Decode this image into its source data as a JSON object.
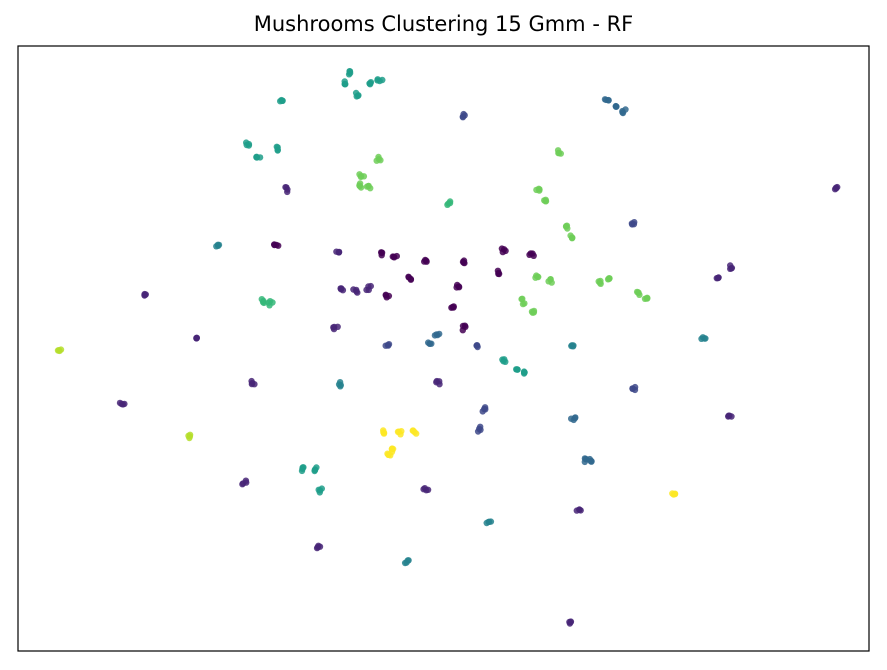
{
  "chart_data": {
    "type": "scatter",
    "title": "Mushrooms Clustering 15 Gmm - RF",
    "xlabel": "",
    "ylabel": "",
    "xlim": [
      0,
      100
    ],
    "ylim": [
      0,
      100
    ],
    "ticks": "none",
    "grid": false,
    "legend": "none",
    "colormap": "viridis",
    "clusters": [
      {
        "label": 0,
        "color": "#440154",
        "centers": [
          [
            30.3,
            67.2
          ],
          [
            42.8,
            65.8
          ],
          [
            44.2,
            65.1
          ],
          [
            47.9,
            64.5
          ],
          [
            46.0,
            61.8
          ],
          [
            43.3,
            58.9
          ],
          [
            52.4,
            64.2
          ],
          [
            51.7,
            60.2
          ],
          [
            51.2,
            56.9
          ],
          [
            52.3,
            53.4
          ],
          [
            56.5,
            62.5
          ],
          [
            57.0,
            66.4
          ],
          [
            60.4,
            65.6
          ]
        ]
      },
      {
        "label": 1,
        "color": "#482677",
        "centers": [
          [
            31.6,
            76.3
          ],
          [
            37.7,
            65.9
          ],
          [
            14.9,
            59.0
          ],
          [
            21.0,
            51.7
          ],
          [
            37.3,
            53.6
          ],
          [
            27.5,
            44.3
          ],
          [
            12.3,
            40.9
          ],
          [
            49.3,
            44.4
          ],
          [
            26.7,
            27.7
          ],
          [
            48.0,
            26.6
          ],
          [
            35.3,
            17.0
          ],
          [
            66.0,
            23.3
          ],
          [
            64.8,
            4.8
          ],
          [
            83.8,
            63.6
          ],
          [
            96.1,
            76.5
          ],
          [
            83.6,
            38.9
          ],
          [
            82.3,
            61.7
          ],
          [
            38.0,
            59.9
          ],
          [
            41.2,
            60.0
          ],
          [
            39.7,
            59.5
          ]
        ]
      },
      {
        "label": 2,
        "color": "#3e4989",
        "centers": [
          [
            52.3,
            88.4
          ],
          [
            72.2,
            70.8
          ],
          [
            72.4,
            43.3
          ],
          [
            54.3,
            36.6
          ],
          [
            43.5,
            50.6
          ],
          [
            54.8,
            40.0
          ],
          [
            54.0,
            50.5
          ]
        ]
      },
      {
        "label": 3,
        "color": "#31688e",
        "centers": [
          [
            48.4,
            50.8
          ],
          [
            49.2,
            52.3
          ],
          [
            65.3,
            38.2
          ],
          [
            66.7,
            31.7
          ],
          [
            67.3,
            31.4
          ],
          [
            69.3,
            91.1
          ],
          [
            70.2,
            90.1
          ],
          [
            71.2,
            89.3
          ]
        ]
      },
      {
        "label": 4,
        "color": "#26828e",
        "centers": [
          [
            23.6,
            67.0
          ],
          [
            37.8,
            44.1
          ],
          [
            65.1,
            50.5
          ],
          [
            80.5,
            51.7
          ],
          [
            55.3,
            21.3
          ],
          [
            45.7,
            14.8
          ]
        ]
      },
      {
        "label": 5,
        "color": "#1f9e89",
        "centers": [
          [
            27.0,
            83.9
          ],
          [
            28.1,
            81.6
          ],
          [
            30.5,
            83.2
          ],
          [
            38.4,
            93.7
          ],
          [
            39.0,
            95.8
          ],
          [
            39.8,
            91.9
          ],
          [
            41.3,
            93.8
          ],
          [
            42.5,
            94.3
          ],
          [
            33.5,
            30.2
          ],
          [
            34.9,
            29.9
          ],
          [
            35.6,
            26.5
          ],
          [
            57.0,
            47.9
          ],
          [
            58.7,
            46.6
          ],
          [
            59.5,
            46.1
          ],
          [
            30.9,
            91.1
          ]
        ]
      },
      {
        "label": 6,
        "color": "#35b779",
        "centers": [
          [
            50.6,
            73.9
          ],
          [
            28.8,
            57.9
          ],
          [
            29.7,
            57.4
          ]
        ]
      },
      {
        "label": 7,
        "color": "#6ece58",
        "centers": [
          [
            42.4,
            81.3
          ],
          [
            40.3,
            78.4
          ],
          [
            40.1,
            76.9
          ],
          [
            41.2,
            76.8
          ],
          [
            61.2,
            76.4
          ],
          [
            62.0,
            74.4
          ],
          [
            64.5,
            70.3
          ],
          [
            65.1,
            68.3
          ],
          [
            61.1,
            61.9
          ],
          [
            62.5,
            61.1
          ],
          [
            59.4,
            57.8
          ],
          [
            60.5,
            56.0
          ],
          [
            68.4,
            60.8
          ],
          [
            69.4,
            61.4
          ],
          [
            72.8,
            59.1
          ],
          [
            74.0,
            58.3
          ],
          [
            63.5,
            82.3
          ]
        ]
      },
      {
        "label": 8,
        "color": "#b5de2b",
        "centers": [
          [
            4.8,
            49.7
          ],
          [
            20.2,
            35.5
          ]
        ]
      },
      {
        "label": 9,
        "color": "#fde725",
        "centers": [
          [
            43.0,
            36.2
          ],
          [
            44.0,
            33.4
          ],
          [
            45.0,
            36.3
          ],
          [
            46.5,
            36.1
          ],
          [
            43.5,
            32.6
          ],
          [
            77.2,
            26.0
          ]
        ]
      }
    ]
  }
}
